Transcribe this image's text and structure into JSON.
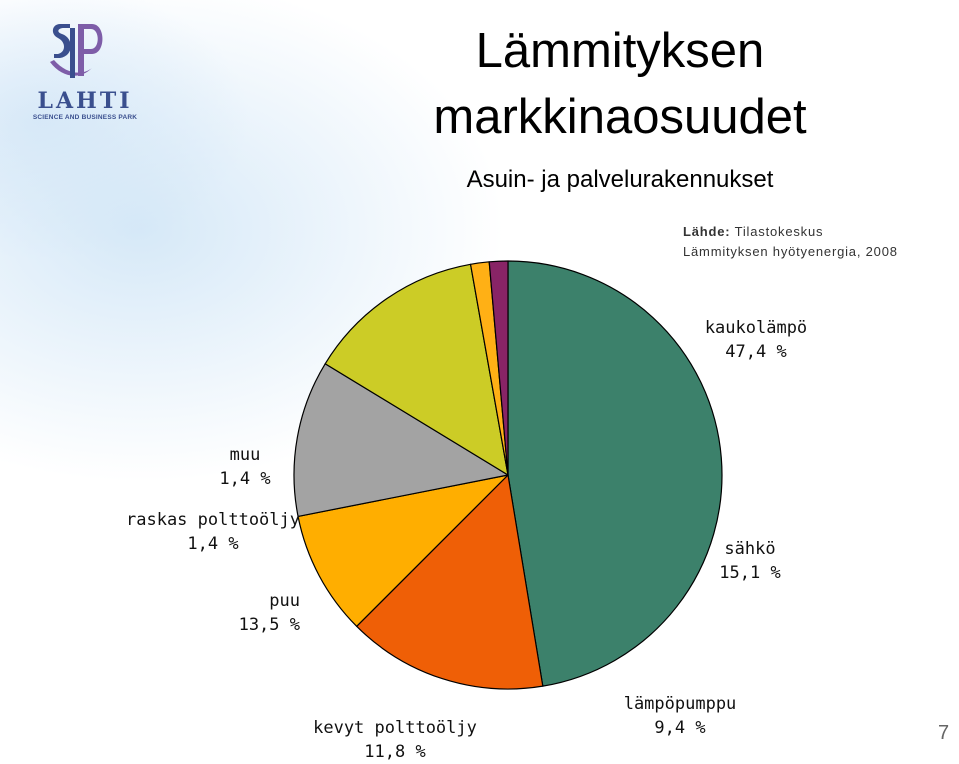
{
  "logo": {
    "word": "LAHTI",
    "sub": "SCIENCE AND BUSINESS PARK",
    "icon": "lahti-sp-logo-icon"
  },
  "title_line1": "Lämmityksen",
  "title_line2": "markkinaosuudet",
  "subtitle": "Asuin- ja palvelurakennukset",
  "source": {
    "label": "Lähde:",
    "name": "Tilastokeskus",
    "line2": "Lämmityksen hyötyenergia, 2008"
  },
  "page_number": "7",
  "chart_data": {
    "type": "pie",
    "title": "Lämmityksen markkinaosuudet",
    "subtitle": "Asuin- ja palvelurakennukset",
    "unit": "%",
    "start_angle_deg": 270,
    "slices": [
      {
        "name": "kaukolämpö",
        "value": 47.4,
        "label": "47,4 %",
        "color": "#3c816b"
      },
      {
        "name": "sähkö",
        "value": 15.1,
        "label": "15,1 %",
        "color": "#ef5f06"
      },
      {
        "name": "lämpöpumppu",
        "value": 9.4,
        "label": "9,4 %",
        "color": "#ffae00"
      },
      {
        "name": "kevyt polttoöljy",
        "value": 11.8,
        "label": "11,8 %",
        "color": "#a3a3a3"
      },
      {
        "name": "puu",
        "value": 13.5,
        "label": "13,5 %",
        "color": "#cccc26"
      },
      {
        "name": "raskas polttoöljy",
        "value": 1.4,
        "label": "1,4 %",
        "color": "#ffb015"
      },
      {
        "name": "muu",
        "value": 1.4,
        "label": "1,4 %",
        "color": "#882466"
      }
    ]
  }
}
